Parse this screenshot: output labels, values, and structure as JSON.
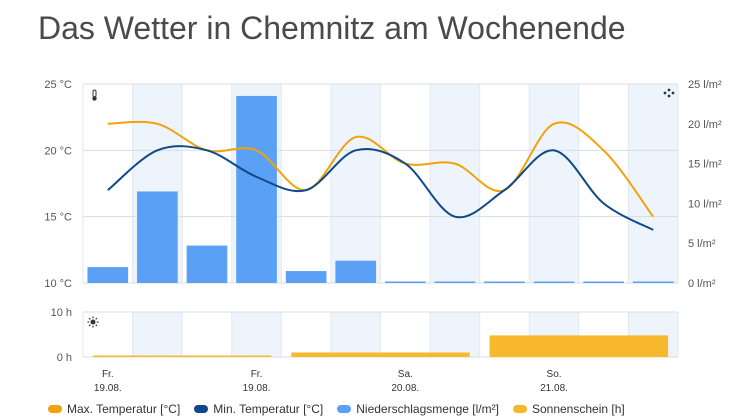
{
  "title": "Das Wetter in Chemnitz am Wochenende",
  "chart_data": [
    {
      "type": "line+bar",
      "x": [
        0,
        1,
        2,
        3,
        4,
        5,
        6,
        7,
        8,
        9,
        10,
        11
      ],
      "left_axis": {
        "ylim": [
          10,
          25
        ],
        "ticks": [
          10,
          15,
          20,
          25
        ],
        "tick_labels": [
          "10 °C",
          "15 °C",
          "20 °C",
          "25 °C"
        ]
      },
      "right_axis": {
        "ylim": [
          0,
          25
        ],
        "ticks": [
          0,
          5,
          10,
          15,
          20,
          25
        ],
        "tick_labels": [
          "0 l/m²",
          "5 l/m²",
          "10 l/m²",
          "15 l/m²",
          "20 l/m²",
          "25 l/m²"
        ]
      },
      "series": [
        {
          "name": "Max. Temperatur [°C]",
          "type": "line",
          "axis": "left",
          "color": "#f0a30a",
          "values": [
            22,
            22,
            20,
            20,
            17,
            21,
            19,
            19,
            17,
            22,
            20,
            15
          ]
        },
        {
          "name": "Min. Temperatur [°C]",
          "type": "line",
          "axis": "left",
          "color": "#0e4a8a",
          "values": [
            17,
            20,
            20,
            18,
            17,
            20,
            19,
            15,
            17,
            20,
            16,
            14
          ]
        },
        {
          "name": "Niederschlagsmenge [l/m²]",
          "type": "bar",
          "axis": "right",
          "color": "#5aa0f5",
          "values": [
            2,
            11.5,
            4.7,
            23.5,
            1.5,
            2.8,
            0,
            0,
            0,
            0,
            0,
            0
          ]
        }
      ],
      "icons": [
        "thermometer-icon",
        "raindrops-icon"
      ]
    },
    {
      "type": "bar",
      "ylim": [
        0,
        10
      ],
      "ticks": [
        0,
        10
      ],
      "tick_labels": [
        "0 h",
        "10 h"
      ],
      "series": [
        {
          "name": "Sonnenschein [h]",
          "color": "#f7b92b",
          "segments": [
            {
              "from": 0,
              "to": 3,
              "value": 0
            },
            {
              "from": 4,
              "to": 7,
              "value": 1
            },
            {
              "from": 8,
              "to": 11,
              "value": 4.8
            }
          ]
        }
      ],
      "icons": [
        "sun-icon"
      ]
    }
  ],
  "x_labels": [
    {
      "line1": "Fr.",
      "line2": "19.08.",
      "at": 0
    },
    {
      "line1": "Fr.",
      "line2": "19.08.",
      "at": 3
    },
    {
      "line1": "Sa.",
      "line2": "20.08.",
      "at": 6
    },
    {
      "line1": "So.",
      "line2": "21.08.",
      "at": 9
    }
  ],
  "legend": [
    {
      "label": "Max. Temperatur [°C]",
      "color": "#f0a30a"
    },
    {
      "label": "Min. Temperatur [°C]",
      "color": "#0e4a8a"
    },
    {
      "label": "Niederschlagsmenge [l/m²]",
      "color": "#5aa0f5"
    },
    {
      "label": "Sonnenschein [h]",
      "color": "#f7b92b"
    }
  ]
}
